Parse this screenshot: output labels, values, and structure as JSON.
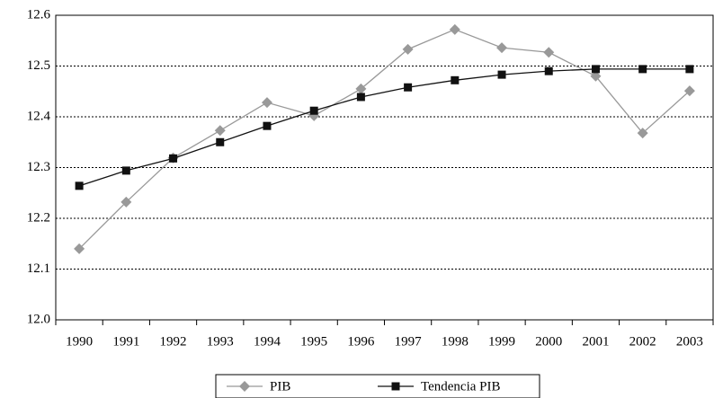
{
  "chart_data": {
    "type": "line",
    "categories": [
      "1990",
      "1991",
      "1992",
      "1993",
      "1994",
      "1995",
      "1996",
      "1997",
      "1998",
      "1999",
      "2000",
      "2001",
      "2002",
      "2003"
    ],
    "series": [
      {
        "name": "PIB",
        "color": "#999999",
        "marker": "diamond",
        "values": [
          12.14,
          12.232,
          12.319,
          12.373,
          12.428,
          12.402,
          12.455,
          12.533,
          12.572,
          12.536,
          12.527,
          12.48,
          12.368,
          12.451
        ]
      },
      {
        "name": "Tendencia PIB",
        "color": "#111111",
        "marker": "square",
        "values": [
          12.264,
          12.294,
          12.318,
          12.35,
          12.382,
          12.412,
          12.439,
          12.458,
          12.472,
          12.483,
          12.49,
          12.494,
          12.494,
          12.494
        ]
      }
    ],
    "ylim": [
      12.0,
      12.6
    ],
    "yticks": [
      {
        "value": 12.0,
        "label": "12.0"
      },
      12.1,
      12.2,
      12.3,
      12.4,
      12.5,
      12.6
    ],
    "grid": true,
    "legend": "bottom"
  }
}
